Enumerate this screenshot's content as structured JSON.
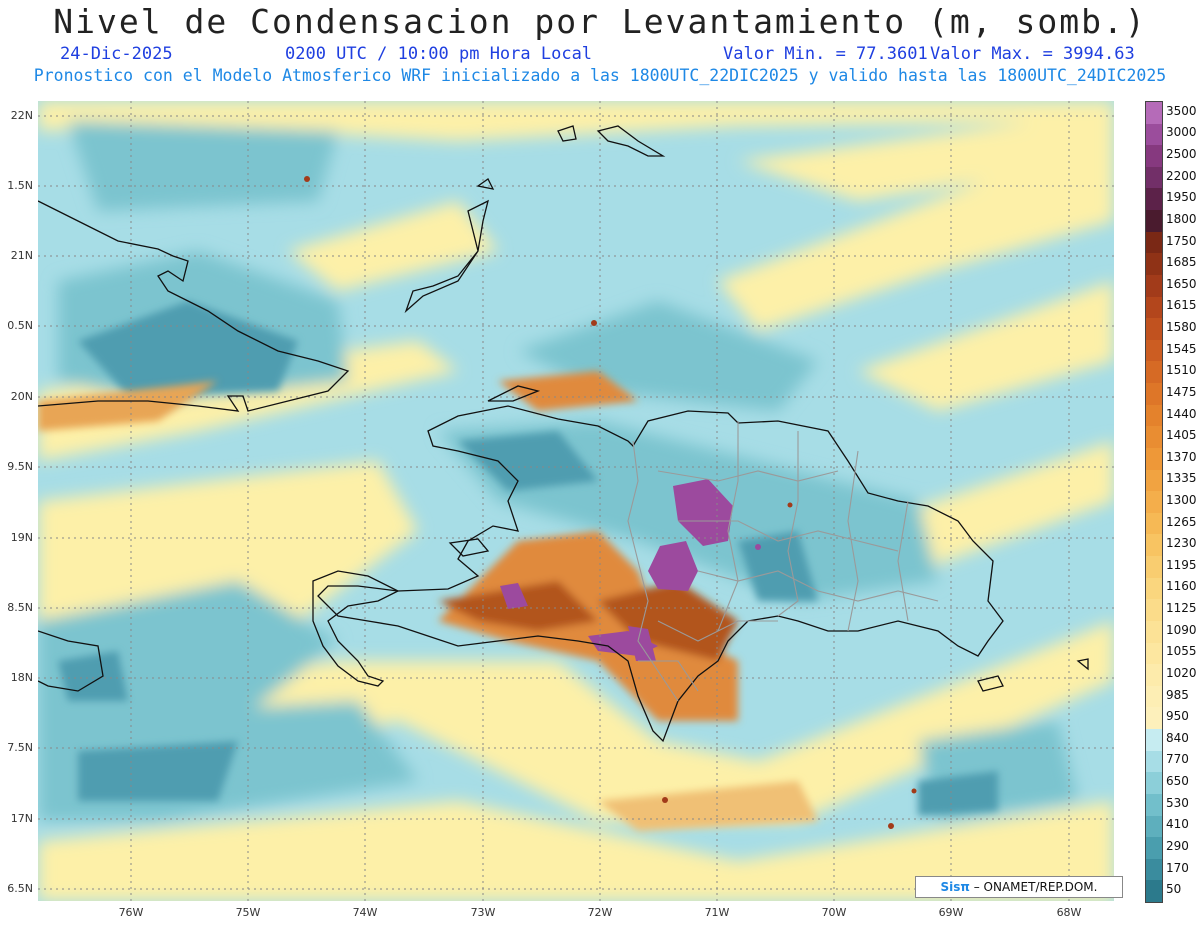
{
  "header": {
    "title": "Nivel de Condensacion por Levantamiento (m, somb.)",
    "date": "24-Dic-2025",
    "time": "0200 UTC / 10:00 pm Hora Local",
    "min_value": "Valor Min. = 77.3601",
    "max_value": "Valor Max. = 3994.63",
    "model_info": "Pronostico con el Modelo Atmosferico WRF inicializado a las 1800UTC_22DIC2025 y valido hasta las  1800UTC_24DIC2025"
  },
  "map": {
    "lat_labels": [
      "22N",
      "1.5N",
      "21N",
      "0.5N",
      "20N",
      "9.5N",
      "19N",
      "8.5N",
      "18N",
      "7.5N",
      "17N",
      "6.5N"
    ],
    "lon_labels": [
      "76W",
      "75W",
      "74W",
      "73W",
      "72W",
      "71W",
      "70W",
      "69W",
      "68W"
    ],
    "colors": {
      "sea_light": "#a7dde6",
      "mid": "#7cc4cf",
      "deep": "#4f9db0",
      "yellow": "#fdf0a8",
      "orange": "#e08a3c",
      "brown": "#b2551c",
      "purple": "#9c4a9e"
    }
  },
  "colorbar": {
    "levels": [
      "3500",
      "3000",
      "2500",
      "2200",
      "1950",
      "1800",
      "1750",
      "1685",
      "1650",
      "1615",
      "1580",
      "1545",
      "1510",
      "1475",
      "1440",
      "1405",
      "1370",
      "1335",
      "1300",
      "1265",
      "1230",
      "1195",
      "1160",
      "1125",
      "1090",
      "1055",
      "1020",
      "985",
      "950",
      "840",
      "770",
      "650",
      "530",
      "410",
      "290",
      "170",
      "50"
    ],
    "colors": [
      "#b56bb8",
      "#9b4d9c",
      "#86397f",
      "#722f68",
      "#5c2249",
      "#4a1b2e",
      "#7a2815",
      "#8f3216",
      "#a23b1a",
      "#b3461c",
      "#c1521f",
      "#cc5d22",
      "#d66a25",
      "#de7628",
      "#e4822c",
      "#e98d32",
      "#ee9838",
      "#f1a341",
      "#f4ae4b",
      "#f6b955",
      "#f8c462",
      "#f9cd70",
      "#fad67e",
      "#fbdc8a",
      "#fce296",
      "#fde7a0",
      "#fdebab",
      "#fdeeb4",
      "#fdf0bb",
      "#c6ecf1",
      "#a7dde6",
      "#8ccfd9",
      "#72bfcb",
      "#5eafbd",
      "#4a9eae",
      "#3a8c9e",
      "#2c7a8c"
    ]
  },
  "credit": {
    "logo": "Sisπ",
    "text": " – ONAMET/REP.DOM."
  }
}
